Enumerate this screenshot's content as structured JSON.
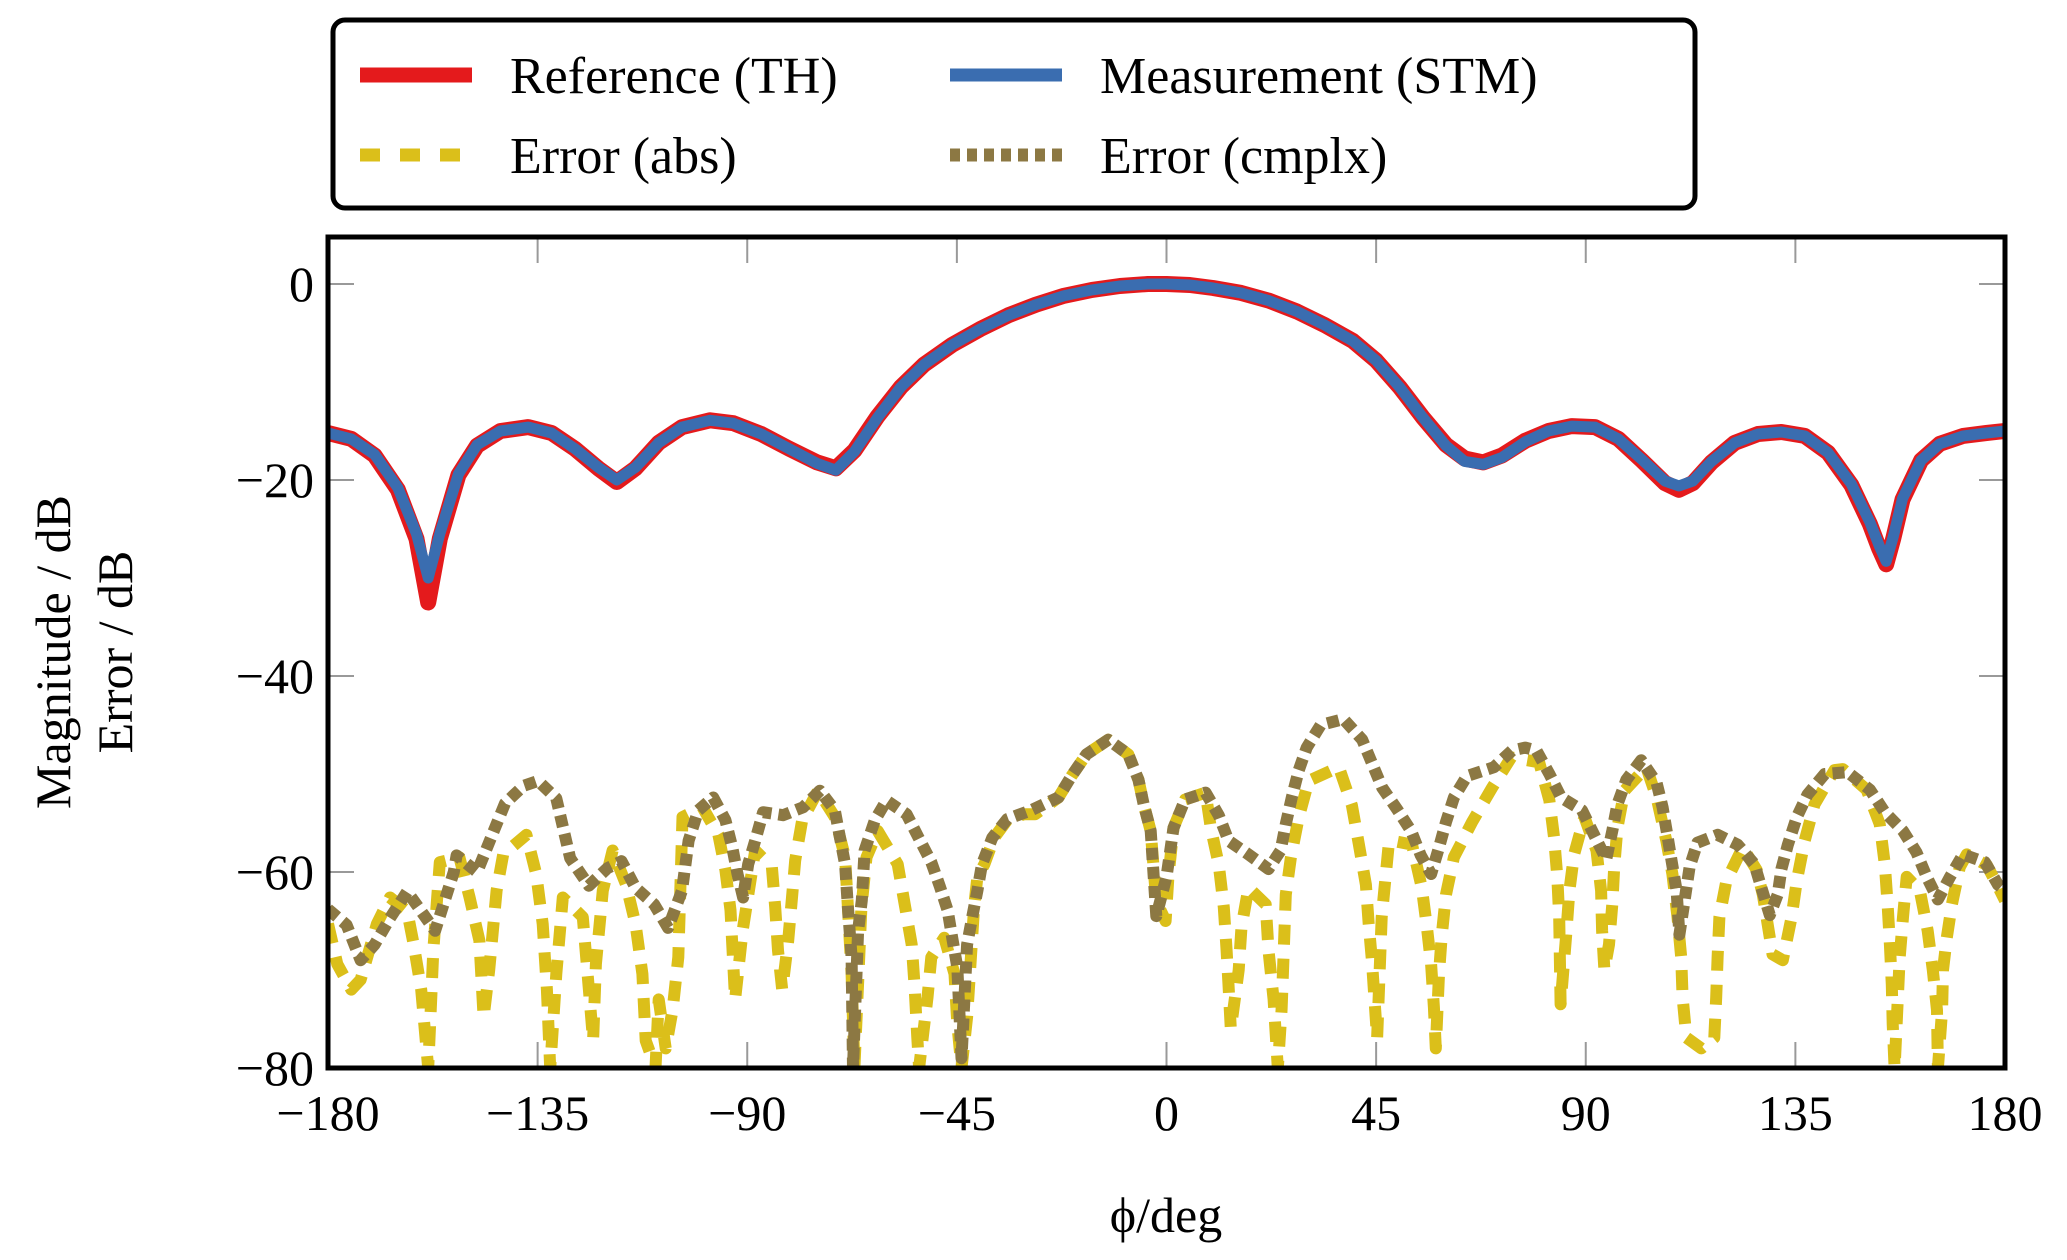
{
  "chart_data": {
    "type": "line",
    "title": "",
    "xlabel": "ϕ/deg",
    "ylabel_lines": [
      "Magnitude / dB",
      "Error / dB"
    ],
    "xlim": [
      -180,
      180
    ],
    "ylim": [
      -80,
      4.8
    ],
    "xticks": [
      -180,
      -135,
      -90,
      -45,
      0,
      45,
      90,
      135,
      180
    ],
    "xtick_labels": [
      "−180",
      "−135",
      "−90",
      "−45",
      "0",
      "45",
      "90",
      "135",
      "180"
    ],
    "yticks": [
      0,
      -20,
      -40,
      -60,
      -80
    ],
    "ytick_labels": [
      "0",
      "−20",
      "−40",
      "−60",
      "−80"
    ],
    "grid": false,
    "legend": {
      "placement": "top-center-outside",
      "columns": 2,
      "entries": [
        {
          "label": "Reference (TH)",
          "series": 0
        },
        {
          "label": "Measurement (STM)",
          "series": 1
        },
        {
          "label": "Error (abs)",
          "series": 2
        },
        {
          "label": "Error (cmplx)",
          "series": 3
        }
      ]
    },
    "series": [
      {
        "name": "Reference (TH)",
        "color": "#e41a1c",
        "style": "solid",
        "x": [
          -180,
          -175,
          -170,
          -165,
          -161,
          -158.5,
          -156,
          -152,
          -148,
          -143,
          -137,
          -132,
          -127,
          -122,
          -118,
          -114,
          -109,
          -104,
          -98,
          -93,
          -87,
          -81,
          -75,
          -71,
          -67,
          -62,
          -57,
          -52,
          -46,
          -40,
          -34,
          -28,
          -22,
          -16,
          -10,
          -4,
          0,
          5,
          10,
          16,
          22,
          28,
          34,
          40,
          45,
          50,
          55,
          60,
          64,
          68,
          72,
          77,
          82,
          87,
          92,
          97,
          102,
          107,
          110,
          113,
          117,
          122,
          127,
          132,
          137,
          142,
          147,
          151,
          153,
          154.5,
          156,
          158,
          162,
          166,
          171,
          176,
          180
        ],
        "y": [
          -15.2,
          -15.8,
          -17.5,
          -21,
          -26,
          -32.5,
          -26,
          -19.5,
          -16.5,
          -15,
          -14.6,
          -15.2,
          -16.8,
          -18.8,
          -20.2,
          -18.8,
          -16.2,
          -14.6,
          -13.9,
          -14.2,
          -15.3,
          -16.8,
          -18.2,
          -18.8,
          -17,
          -13.5,
          -10.5,
          -8.2,
          -6.2,
          -4.6,
          -3.2,
          -2.1,
          -1.2,
          -0.6,
          -0.2,
          0,
          0,
          -0.1,
          -0.4,
          -0.9,
          -1.7,
          -2.8,
          -4.2,
          -5.8,
          -7.8,
          -10.5,
          -13.6,
          -16.4,
          -17.8,
          -18.2,
          -17.5,
          -16,
          -15,
          -14.5,
          -14.6,
          -15.8,
          -18,
          -20.3,
          -21,
          -20.3,
          -18.2,
          -16.2,
          -15.3,
          -15.1,
          -15.5,
          -17.2,
          -20.5,
          -24.5,
          -27,
          -28.6,
          -26,
          -22,
          -18,
          -16.3,
          -15.5,
          -15.2,
          -15
        ]
      },
      {
        "name": "Measurement (STM)",
        "color": "#3a6db0",
        "style": "solid",
        "x": [
          -180,
          -175,
          -170,
          -165,
          -161,
          -158.5,
          -156,
          -152,
          -148,
          -143,
          -137,
          -132,
          -127,
          -122,
          -118,
          -114,
          -109,
          -104,
          -98,
          -93,
          -87,
          -81,
          -75,
          -71,
          -67,
          -62,
          -57,
          -52,
          -46,
          -40,
          -34,
          -28,
          -22,
          -16,
          -10,
          -4,
          0,
          5,
          10,
          16,
          22,
          28,
          34,
          40,
          45,
          50,
          55,
          60,
          64,
          68,
          72,
          77,
          82,
          87,
          92,
          97,
          102,
          107,
          110,
          113,
          117,
          122,
          127,
          132,
          137,
          142,
          147,
          151,
          153,
          154.5,
          156,
          158,
          162,
          166,
          171,
          176,
          180
        ],
        "y": [
          -15.2,
          -15.8,
          -17.4,
          -20.8,
          -25.5,
          -30,
          -25.5,
          -19.4,
          -16.4,
          -15,
          -14.6,
          -15.2,
          -16.8,
          -18.7,
          -20,
          -18.7,
          -16.2,
          -14.6,
          -13.9,
          -14.2,
          -15.3,
          -16.8,
          -18.3,
          -19,
          -17.1,
          -13.6,
          -10.5,
          -8.2,
          -6.2,
          -4.6,
          -3.2,
          -2.1,
          -1.2,
          -0.6,
          -0.2,
          0,
          0,
          -0.1,
          -0.4,
          -0.9,
          -1.7,
          -2.8,
          -4.2,
          -5.8,
          -7.8,
          -10.5,
          -13.6,
          -16.5,
          -18.1,
          -18.4,
          -17.7,
          -16.1,
          -15,
          -14.5,
          -14.6,
          -15.8,
          -17.9,
          -20.1,
          -20.6,
          -20.1,
          -18.1,
          -16.2,
          -15.3,
          -15.1,
          -15.5,
          -17.2,
          -20.4,
          -24.3,
          -26.7,
          -28.3,
          -25.8,
          -21.9,
          -18,
          -16.3,
          -15.5,
          -15.2,
          -15
        ]
      },
      {
        "name": "Error (abs)",
        "color": "#dbbf1a",
        "style": "dashed",
        "x": [
          -180,
          -178,
          -175,
          -173,
          -169.5,
          -166.7,
          -163,
          -161.6,
          -160,
          -158.5,
          -157.4,
          -156,
          -151.8,
          -149.6,
          -147.5,
          -146.6,
          -145.4,
          -143.8,
          -142.4,
          -137.4,
          -135.3,
          -133.9,
          -133,
          -132.3,
          -131,
          -129.6,
          -125.3,
          -124,
          -123.1,
          -122.5,
          -121,
          -118.9,
          -116,
          -114,
          -112.5,
          -111.8,
          -109.7,
          -109,
          -107.5,
          -106,
          -104.8,
          -103.9,
          -99.6,
          -96.2,
          -94.7,
          -93.6,
          -92.6,
          -91,
          -88.3,
          -84.7,
          -84,
          -83.4,
          -82.5,
          -81.2,
          -80.4,
          -79.7,
          -78.2,
          -74.8,
          -71.2,
          -69,
          -68.4,
          -67.6,
          -67,
          -65.5,
          -64.4,
          -62,
          -57.7,
          -56.2,
          -54.7,
          -54.1,
          -53.5,
          -53.1,
          -51.3,
          -50.5,
          -47.7,
          -45.5,
          -44.9,
          -44,
          -42.8,
          -42,
          -41.3,
          -40.6,
          -39.1,
          -37,
          -34.2,
          -30.6,
          -28.2,
          -23.2,
          -20.4,
          -17.2,
          -12.5,
          -8.2,
          -6,
          -4.9,
          -3.4,
          -2.2,
          -0.2,
          0.4,
          1.5,
          4,
          8.4,
          9.5,
          11.2,
          12.3,
          12.9,
          13.3,
          13.8,
          15.5,
          16.1,
          17.6,
          21.3,
          21.9,
          23,
          23.9,
          24.7,
          25.6,
          26.7,
          28.4,
          30.5,
          37,
          39.8,
          41.3,
          42.8,
          43.4,
          44.1,
          45.2,
          46.2,
          47.7,
          48.4,
          52.7,
          54.8,
          55.9,
          56.8,
          57.4,
          57.8,
          58.5,
          59.1,
          60,
          61.7,
          65.6,
          69.9,
          74,
          80,
          82.2,
          83.2,
          83.9,
          84.3,
          84.6,
          85.8,
          86.5,
          87.5,
          89.7,
          92.3,
          93.3,
          93.5,
          94,
          95,
          95.7,
          96.1,
          96.8,
          98.3,
          103,
          105.2,
          107.3,
          108.6,
          109.7,
          110.5,
          110.8,
          111.6,
          114.8,
          117.6,
          118,
          118.3,
          118.7,
          120.2,
          123.7,
          126.7,
          128,
          128.8,
          130.1,
          132.3,
          134.2,
          135.3,
          137,
          139.1,
          143.4,
          145.2,
          150.3,
          153.1,
          154.2,
          154.8,
          155.3,
          155.7,
          155.9,
          156.3,
          157.4,
          158.1,
          158.9,
          161.7,
          163.4,
          164.5,
          165.4,
          165.6,
          166.5,
          166.7,
          167.5,
          168.6,
          170.3,
          171.8,
          176.1,
          178.3,
          180
        ],
        "y": [
          -65.3,
          -69.4,
          -72,
          -71,
          -65.3,
          -62.6,
          -64,
          -67.4,
          -72,
          -80,
          -68,
          -59,
          -58.5,
          -62.6,
          -67,
          -74.8,
          -70,
          -61.9,
          -58.2,
          -56.2,
          -60.2,
          -65.3,
          -72,
          -80,
          -70.4,
          -62.6,
          -64.6,
          -72,
          -77.2,
          -69.4,
          -61.9,
          -57.8,
          -61.3,
          -65.3,
          -70.4,
          -77.2,
          -80,
          -73,
          -78,
          -74,
          -68.7,
          -54.4,
          -53.4,
          -56.2,
          -59.8,
          -63.9,
          -73,
          -66,
          -57.8,
          -59.5,
          -63.6,
          -68,
          -72,
          -67,
          -62.6,
          -58.8,
          -54.7,
          -51.7,
          -54.4,
          -58.5,
          -63.6,
          -70.4,
          -80,
          -63.6,
          -58.5,
          -55.8,
          -59.2,
          -63.3,
          -67.4,
          -71.5,
          -76.9,
          -80,
          -72.8,
          -68.7,
          -66.7,
          -70.4,
          -75.5,
          -80,
          -74.8,
          -68.7,
          -63.6,
          -60.5,
          -59.2,
          -56.5,
          -54.7,
          -54.1,
          -54.1,
          -52.4,
          -50.2,
          -48,
          -46.5,
          -48,
          -50.6,
          -53.1,
          -55.8,
          -63,
          -65,
          -60.5,
          -55.5,
          -52.6,
          -51.9,
          -55.5,
          -59.2,
          -63.6,
          -68,
          -71.5,
          -76,
          -70,
          -65.6,
          -61.6,
          -63.3,
          -68,
          -73,
          -80,
          -74,
          -62.3,
          -58.5,
          -54.4,
          -50.7,
          -49.3,
          -53.2,
          -57.2,
          -61.3,
          -65.3,
          -69,
          -77,
          -64.6,
          -57.2,
          -56.8,
          -57.2,
          -61.6,
          -65.6,
          -69.4,
          -73.8,
          -78,
          -70.4,
          -66.4,
          -62.3,
          -58.5,
          -54.9,
          -51.4,
          -48.3,
          -48.8,
          -52.7,
          -56.5,
          -60.5,
          -64.6,
          -73.5,
          -66.4,
          -61.9,
          -58.2,
          -54.4,
          -57.8,
          -61.9,
          -66,
          -70,
          -67.4,
          -63.3,
          -59.5,
          -55.5,
          -51.7,
          -49.3,
          -52.4,
          -56.8,
          -60.2,
          -64.6,
          -68.7,
          -72.8,
          -76.9,
          -78,
          -76.9,
          -72.8,
          -68.7,
          -64.6,
          -60.9,
          -57.5,
          -59.8,
          -62.3,
          -64.6,
          -68.4,
          -69,
          -64.6,
          -60.9,
          -56.8,
          -53.1,
          -49.6,
          -49.5,
          -51.6,
          -55.1,
          -59.2,
          -63.3,
          -67.4,
          -71.5,
          -75.5,
          -80,
          -68.7,
          -64.6,
          -60.5,
          -61.9,
          -66,
          -70,
          -74.1,
          -80,
          -74.1,
          -70,
          -66.7,
          -63.3,
          -59.5,
          -58.2,
          -59.3,
          -61.3,
          -62.9
        ]
      },
      {
        "name": "Error (cmplx)",
        "color": "#8c7843",
        "style": "dotted",
        "x": [
          -180,
          -176,
          -173,
          -170,
          -166.7,
          -163,
          -160,
          -157,
          -153,
          -152.4,
          -148,
          -145,
          -142,
          -138,
          -134.9,
          -131,
          -128,
          -124,
          -120,
          -117,
          -114,
          -110,
          -107,
          -104,
          -102.6,
          -100.5,
          -97.3,
          -94.7,
          -93.2,
          -92.1,
          -90.9,
          -89.8,
          -88.3,
          -86.6,
          -82.3,
          -78,
          -74.4,
          -71.2,
          -70.1,
          -69,
          -68.4,
          -67.6,
          -67.3,
          -66.2,
          -65.4,
          -64.8,
          -62.6,
          -60.1,
          -55.8,
          -53,
          -50.5,
          -48.7,
          -47,
          -46,
          -44.9,
          -44,
          -42.8,
          -41.7,
          -40.6,
          -39.6,
          -37.4,
          -34.2,
          -29.1,
          -23.2,
          -20.4,
          -17.2,
          -12.5,
          -8.2,
          -6,
          -4.9,
          -3.4,
          -2.2,
          0,
          1.5,
          4,
          8.4,
          11.2,
          13.3,
          17.6,
          21.9,
          24.5,
          25.6,
          26.9,
          28.4,
          30.1,
          33.1,
          38,
          42,
          46.3,
          49.5,
          52.5,
          54.6,
          56.8,
          58.5,
          60,
          61.7,
          64.5,
          70.3,
          74.2,
          77,
          79.4,
          82.2,
          84.7,
          89.2,
          91.8,
          94.4,
          95.7,
          96.8,
          98.7,
          101.9,
          105.2,
          106.5,
          107.5,
          108.4,
          109.5,
          110.1,
          112.3,
          114,
          118.3,
          122.6,
          126.2,
          127.7,
          129.5,
          131.2,
          132,
          133.4,
          135.3,
          137.6,
          141.3,
          146.2,
          151,
          154.2,
          158.1,
          161,
          163.2,
          165.6,
          168.2,
          171,
          175.7,
          178.5,
          180
        ],
        "y": [
          -63.8,
          -65.4,
          -69,
          -67.4,
          -64.7,
          -62,
          -64,
          -66,
          -60,
          -58.3,
          -60,
          -56.5,
          -53,
          -51.2,
          -50.7,
          -52.5,
          -58.6,
          -61.4,
          -59.6,
          -58.9,
          -61.6,
          -63.3,
          -65.7,
          -61.9,
          -56.8,
          -53.7,
          -52.4,
          -54.7,
          -57.5,
          -60.2,
          -62.6,
          -59.2,
          -56.8,
          -53.9,
          -54.2,
          -53.4,
          -51.7,
          -53.7,
          -56.5,
          -59.2,
          -63.6,
          -68.7,
          -80,
          -66,
          -62.9,
          -57.8,
          -54.7,
          -52.7,
          -54.1,
          -56.7,
          -59,
          -61.4,
          -63.9,
          -66.7,
          -69.7,
          -79,
          -67.4,
          -64.6,
          -61.9,
          -59.2,
          -56.5,
          -54.6,
          -53.7,
          -52.4,
          -50.2,
          -48,
          -46.5,
          -48,
          -50.6,
          -53.1,
          -55.8,
          -64.5,
          -60.5,
          -55.5,
          -52.6,
          -51.9,
          -54.2,
          -56.8,
          -58.2,
          -59.7,
          -57.8,
          -55.1,
          -52.4,
          -49.6,
          -47.3,
          -45,
          -44.4,
          -46.5,
          -51.4,
          -53.6,
          -55.8,
          -58.3,
          -60.2,
          -57.5,
          -54.9,
          -52.4,
          -50.2,
          -49.3,
          -47.6,
          -47.3,
          -47.6,
          -50,
          -52.4,
          -53.7,
          -56.2,
          -58.7,
          -55.8,
          -53.1,
          -50.6,
          -48.6,
          -50.9,
          -53.4,
          -56.2,
          -58.8,
          -61.9,
          -66.4,
          -59.5,
          -57,
          -56.2,
          -57.2,
          -59.2,
          -61.6,
          -64.4,
          -62.3,
          -59.7,
          -57.2,
          -54.4,
          -52.1,
          -50,
          -49.8,
          -51.6,
          -53.9,
          -55.8,
          -58,
          -60.5,
          -62.8,
          -60.5,
          -58.2,
          -59,
          -61.3,
          -61.9
        ]
      }
    ]
  }
}
